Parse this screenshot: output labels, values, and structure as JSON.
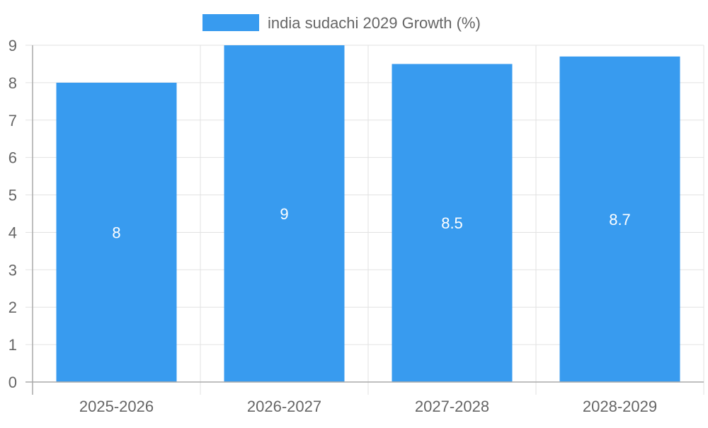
{
  "chart_data": {
    "type": "bar",
    "categories": [
      "2025-2026",
      "2026-2027",
      "2027-2028",
      "2028-2029"
    ],
    "series": [
      {
        "name": "india sudachi 2029 Growth (%)",
        "values": [
          8,
          9,
          8.5,
          8.7
        ]
      }
    ],
    "data_labels": [
      "8",
      "9",
      "8.5",
      "8.7"
    ],
    "y_ticks": [
      "0",
      "1",
      "2",
      "3",
      "4",
      "5",
      "6",
      "7",
      "8",
      "9"
    ],
    "ylim": [
      0,
      9
    ],
    "grid": true,
    "legend_position": "top",
    "colors": {
      "bar": "#389BEF",
      "grid": "#E2E2E2",
      "axis": "#AAAAAA",
      "text": "#666666",
      "data_label": "#FFFFFF"
    }
  }
}
